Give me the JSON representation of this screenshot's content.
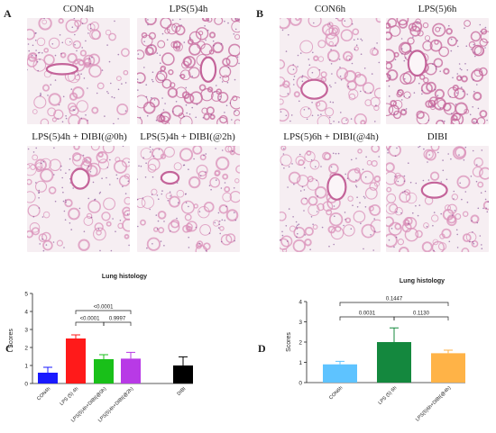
{
  "panels": {
    "A": "A",
    "B": "B",
    "C": "C",
    "D": "D"
  },
  "images": [
    {
      "caption": "CON4h"
    },
    {
      "caption": "LPS(5)4h"
    },
    {
      "caption": "LPS(5)4h + DIBI(@0h)"
    },
    {
      "caption": "LPS(5)4h + DIBI(@2h)"
    },
    {
      "caption": "CON6h"
    },
    {
      "caption": "LPS(5)6h"
    },
    {
      "caption": "LPS(5)6h + DIBI(@4h)"
    },
    {
      "caption": "DIBI"
    }
  ],
  "colors": {
    "tissue_bg": "#f6eef2",
    "tissue": "#d98fb8",
    "tissue_dense": "#c4649a",
    "nuclei": "#7a3f8c"
  },
  "chart_data": [
    {
      "type": "bar",
      "title": "Lung histology",
      "ylabel": "Scores",
      "ylim": [
        0,
        5
      ],
      "yticks": [
        "0",
        "1",
        "2",
        "3",
        "4",
        "5"
      ],
      "categories": [
        "CON4h",
        "LPS (5) 4h",
        "LPS(5)4h+DIBI(@0h)",
        "LPS(5)4h+DIBI(@2h)",
        "DIBI"
      ],
      "values": [
        0.6,
        2.5,
        1.35,
        1.38,
        1.0
      ],
      "errors": [
        0.3,
        0.2,
        0.25,
        0.35,
        0.48
      ],
      "colors": [
        "#1a1aff",
        "#ff1a1a",
        "#19c019",
        "#b83ae6",
        "#000000"
      ],
      "comparisons": [
        {
          "label": "<0.0001",
          "from": 1,
          "to": 3
        },
        {
          "label": "<0.0001",
          "from": 1,
          "to": 2
        },
        {
          "label": "0.9997",
          "from": 2,
          "to": 3
        }
      ]
    },
    {
      "type": "bar",
      "title": "Lung histology",
      "ylabel": "Scores",
      "ylim": [
        0,
        4
      ],
      "yticks": [
        "0",
        "1",
        "2",
        "3",
        "4"
      ],
      "categories": [
        "CON6h",
        "LPS (5) 6h",
        "LPS(5)6h+DIBI(@4h)"
      ],
      "values": [
        0.9,
        2.0,
        1.45
      ],
      "errors": [
        0.15,
        0.7,
        0.15
      ],
      "colors": [
        "#5ec3ff",
        "#14883e",
        "#ffb347"
      ],
      "comparisons": [
        {
          "label": "0.1447",
          "from": 0,
          "to": 2
        },
        {
          "label": "0.0031",
          "from": 0,
          "to": 1
        },
        {
          "label": "0.1130",
          "from": 1,
          "to": 2
        }
      ]
    }
  ]
}
